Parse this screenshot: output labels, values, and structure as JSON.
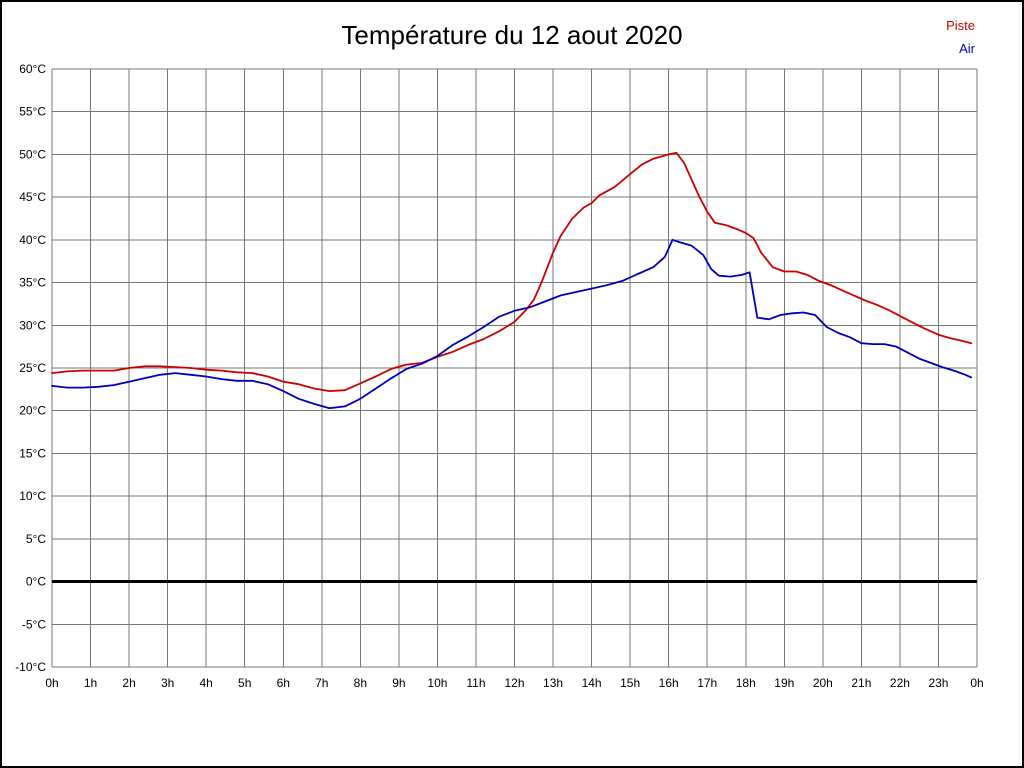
{
  "title": "Température du 12 aout 2020",
  "legend": {
    "piste": {
      "label": "Piste",
      "color": "#cc0000"
    },
    "air": {
      "label": "Air",
      "color": "#0000bb"
    }
  },
  "chart_data": {
    "type": "line",
    "title": "Température du 12 aout 2020",
    "xlabel": "",
    "ylabel": "",
    "xlim": [
      0,
      24
    ],
    "ylim": [
      -10,
      60
    ],
    "grid": true,
    "grid_color": "#777777",
    "legend_position": "top-right",
    "x_tick_labels": [
      "0h",
      "1h",
      "2h",
      "3h",
      "4h",
      "5h",
      "6h",
      "7h",
      "8h",
      "9h",
      "10h",
      "11h",
      "12h",
      "13h",
      "14h",
      "15h",
      "16h",
      "17h",
      "18h",
      "19h",
      "20h",
      "21h",
      "22h",
      "23h",
      "0h"
    ],
    "y_ticks": [
      60,
      55,
      50,
      45,
      40,
      35,
      30,
      25,
      20,
      15,
      10,
      5,
      0,
      -5,
      -10
    ],
    "y_tick_suffix": "°C",
    "zero_line": {
      "value": 0,
      "color": "#000000",
      "width": 3
    },
    "series": [
      {
        "name": "Piste",
        "color": "#cc0000",
        "points": [
          [
            0,
            24.4
          ],
          [
            0.4,
            24.6
          ],
          [
            0.8,
            24.7
          ],
          [
            1.2,
            24.7
          ],
          [
            1.6,
            24.7
          ],
          [
            2,
            25.0
          ],
          [
            2.4,
            25.2
          ],
          [
            2.8,
            25.2
          ],
          [
            3.2,
            25.1
          ],
          [
            3.6,
            25.0
          ],
          [
            4,
            24.8
          ],
          [
            4.4,
            24.7
          ],
          [
            4.8,
            24.5
          ],
          [
            5.2,
            24.4
          ],
          [
            5.6,
            24.0
          ],
          [
            6,
            23.4
          ],
          [
            6.4,
            23.1
          ],
          [
            6.8,
            22.6
          ],
          [
            7.2,
            22.3
          ],
          [
            7.6,
            22.4
          ],
          [
            8,
            23.2
          ],
          [
            8.4,
            24.0
          ],
          [
            8.8,
            24.9
          ],
          [
            9.2,
            25.4
          ],
          [
            9.6,
            25.6
          ],
          [
            10,
            26.3
          ],
          [
            10.4,
            26.9
          ],
          [
            10.8,
            27.7
          ],
          [
            11.2,
            28.4
          ],
          [
            11.6,
            29.3
          ],
          [
            12,
            30.4
          ],
          [
            12.3,
            31.8
          ],
          [
            12.5,
            33.0
          ],
          [
            12.7,
            35.0
          ],
          [
            13,
            38.5
          ],
          [
            13.2,
            40.5
          ],
          [
            13.5,
            42.5
          ],
          [
            13.8,
            43.8
          ],
          [
            14,
            44.3
          ],
          [
            14.2,
            45.2
          ],
          [
            14.6,
            46.2
          ],
          [
            15,
            47.7
          ],
          [
            15.3,
            48.8
          ],
          [
            15.6,
            49.5
          ],
          [
            16,
            50.0
          ],
          [
            16.2,
            50.2
          ],
          [
            16.4,
            49.0
          ],
          [
            16.6,
            47.0
          ],
          [
            16.8,
            45.0
          ],
          [
            17,
            43.3
          ],
          [
            17.2,
            42.0
          ],
          [
            17.5,
            41.7
          ],
          [
            17.8,
            41.2
          ],
          [
            18,
            40.8
          ],
          [
            18.2,
            40.2
          ],
          [
            18.4,
            38.5
          ],
          [
            18.7,
            36.8
          ],
          [
            19,
            36.3
          ],
          [
            19.3,
            36.3
          ],
          [
            19.6,
            35.9
          ],
          [
            19.9,
            35.2
          ],
          [
            20.2,
            34.7
          ],
          [
            20.5,
            34.1
          ],
          [
            20.8,
            33.5
          ],
          [
            21.1,
            32.9
          ],
          [
            21.4,
            32.4
          ],
          [
            21.7,
            31.8
          ],
          [
            22,
            31.1
          ],
          [
            22.3,
            30.4
          ],
          [
            22.6,
            29.7
          ],
          [
            23,
            28.9
          ],
          [
            23.3,
            28.5
          ],
          [
            23.6,
            28.2
          ],
          [
            23.85,
            27.9
          ]
        ]
      },
      {
        "name": "Air",
        "color": "#0000bb",
        "points": [
          [
            0,
            22.9
          ],
          [
            0.4,
            22.7
          ],
          [
            0.8,
            22.7
          ],
          [
            1.2,
            22.8
          ],
          [
            1.6,
            23.0
          ],
          [
            2,
            23.4
          ],
          [
            2.4,
            23.8
          ],
          [
            2.8,
            24.2
          ],
          [
            3.2,
            24.4
          ],
          [
            3.6,
            24.2
          ],
          [
            4,
            24.0
          ],
          [
            4.4,
            23.7
          ],
          [
            4.8,
            23.5
          ],
          [
            5.2,
            23.5
          ],
          [
            5.6,
            23.1
          ],
          [
            6,
            22.3
          ],
          [
            6.4,
            21.4
          ],
          [
            6.8,
            20.8
          ],
          [
            7.2,
            20.3
          ],
          [
            7.6,
            20.5
          ],
          [
            8,
            21.4
          ],
          [
            8.4,
            22.6
          ],
          [
            8.8,
            23.8
          ],
          [
            9.2,
            24.9
          ],
          [
            9.6,
            25.5
          ],
          [
            10,
            26.4
          ],
          [
            10.4,
            27.7
          ],
          [
            10.8,
            28.7
          ],
          [
            11.2,
            29.8
          ],
          [
            11.6,
            31.0
          ],
          [
            12,
            31.7
          ],
          [
            12.4,
            32.1
          ],
          [
            12.8,
            32.8
          ],
          [
            13.2,
            33.5
          ],
          [
            13.6,
            33.9
          ],
          [
            14,
            34.3
          ],
          [
            14.4,
            34.7
          ],
          [
            14.8,
            35.2
          ],
          [
            15.2,
            36.0
          ],
          [
            15.6,
            36.8
          ],
          [
            15.9,
            38.0
          ],
          [
            16.1,
            40.0
          ],
          [
            16.3,
            39.7
          ],
          [
            16.6,
            39.3
          ],
          [
            16.9,
            38.2
          ],
          [
            17.1,
            36.6
          ],
          [
            17.3,
            35.8
          ],
          [
            17.6,
            35.7
          ],
          [
            17.9,
            35.9
          ],
          [
            18.1,
            36.2
          ],
          [
            18.3,
            30.9
          ],
          [
            18.6,
            30.7
          ],
          [
            18.9,
            31.2
          ],
          [
            19.2,
            31.4
          ],
          [
            19.5,
            31.5
          ],
          [
            19.8,
            31.2
          ],
          [
            20.1,
            29.8
          ],
          [
            20.4,
            29.1
          ],
          [
            20.7,
            28.6
          ],
          [
            21,
            27.9
          ],
          [
            21.3,
            27.8
          ],
          [
            21.6,
            27.8
          ],
          [
            21.9,
            27.5
          ],
          [
            22.2,
            26.8
          ],
          [
            22.5,
            26.1
          ],
          [
            22.8,
            25.6
          ],
          [
            23.1,
            25.1
          ],
          [
            23.4,
            24.7
          ],
          [
            23.7,
            24.2
          ],
          [
            23.85,
            23.9
          ]
        ]
      }
    ]
  }
}
